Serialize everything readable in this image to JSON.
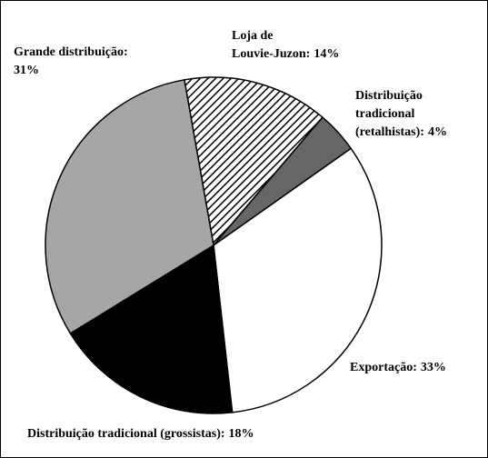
{
  "chart_data": {
    "type": "pie",
    "categories": [
      "Loja de\nLouvie-Juzon:",
      "Distribuição\ntradicional\n(retalhistas):",
      "Exportação:",
      "Distribuição tradicional (grossistas):",
      "Grande distribuição:"
    ],
    "values": [
      14,
      4,
      33,
      18,
      31
    ],
    "value_labels": [
      "14%",
      "4%",
      "33%",
      "18%",
      "31%"
    ],
    "colors": [
      "hatch",
      "#666666",
      "#ffffff",
      "#000000",
      "#a6a6a6"
    ]
  }
}
